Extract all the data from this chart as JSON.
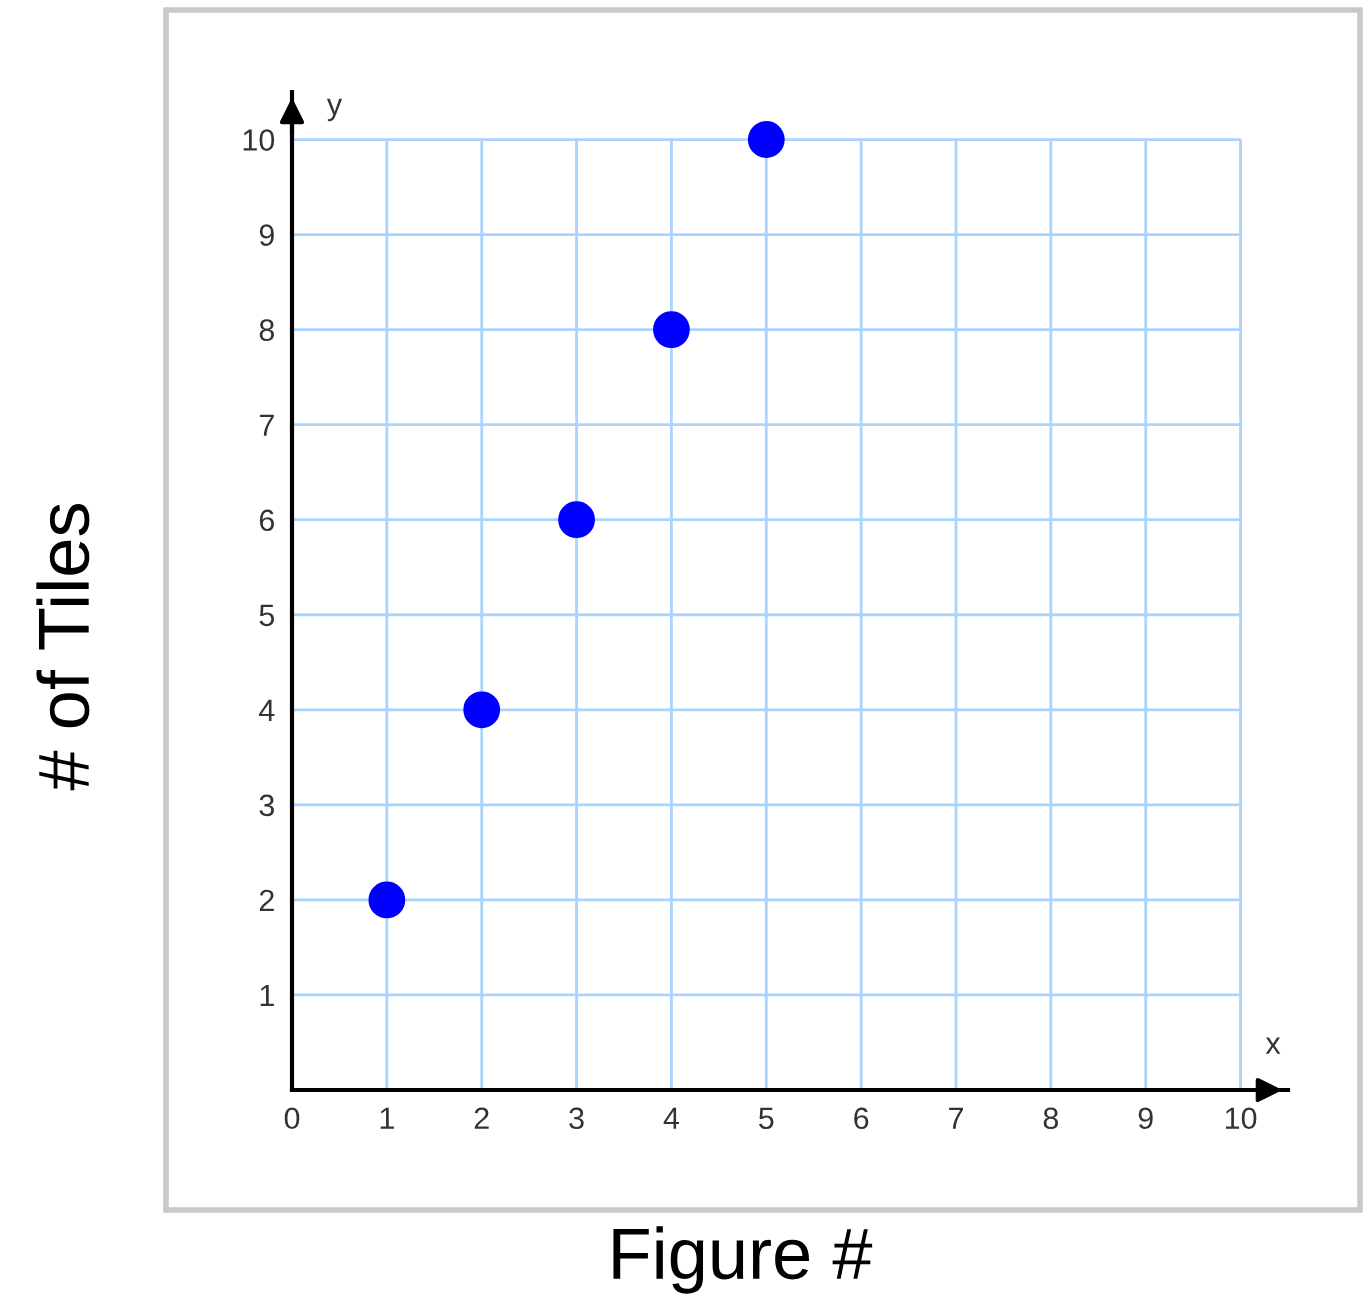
{
  "chart_data": {
    "type": "scatter",
    "xlabel": "Figure #",
    "ylabel": "# of Tiles",
    "annotations": [
      "x",
      "y"
    ],
    "x": [
      1,
      2,
      3,
      4,
      5
    ],
    "series": [
      {
        "color": "#0000ff",
        "values": [
          2,
          4,
          6,
          8,
          10
        ]
      }
    ],
    "xlim": [
      0,
      10.5
    ],
    "ylim": [
      0,
      10.5
    ],
    "xticks": [
      0,
      1,
      2,
      3,
      4,
      5,
      6,
      7,
      8,
      9,
      10
    ],
    "yticks": [
      {
        "value": 0,
        "label": null
      },
      1,
      2,
      3,
      4,
      5,
      6,
      7,
      8,
      9,
      10
    ],
    "grid": true,
    "marker": "circle"
  }
}
